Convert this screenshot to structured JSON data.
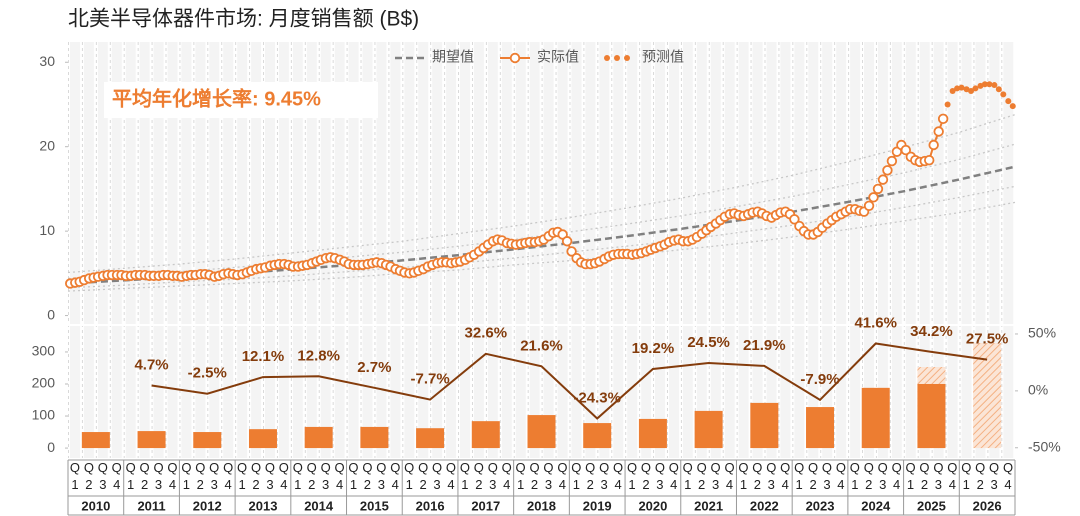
{
  "chart_data": [
    {
      "type": "line",
      "title": "北美半导体器件市场: 月度销售额 (B$)",
      "annotation": "平均年化增长率:  9.45%",
      "xlim": [
        2010,
        2027
      ],
      "ylim": [
        -1,
        32.4
      ],
      "yticks": [
        0,
        10,
        20,
        30
      ],
      "legend": "top",
      "series": [
        {
          "color": "#c8c8c8",
          "style": "dotted",
          "x": [
            2010,
            2011,
            2012,
            2013,
            2014,
            2015,
            2016,
            2017,
            2018,
            2019,
            2020,
            2021,
            2022,
            2023,
            2024,
            2025,
            2026,
            2027
          ],
          "values": [
            5.1,
            5.6,
            6.1,
            6.7,
            7.4,
            8.1,
            8.8,
            9.7,
            10.6,
            11.6,
            12.7,
            13.9,
            15.2,
            16.6,
            18.2,
            19.9,
            21.7,
            23.8
          ]
        },
        {
          "color": "#c8c8c8",
          "style": "dotted",
          "x": [
            2010,
            2011,
            2012,
            2013,
            2014,
            2015,
            2016,
            2017,
            2018,
            2019,
            2020,
            2021,
            2022,
            2023,
            2024,
            2025,
            2026,
            2027
          ],
          "values": [
            4.4,
            4.8,
            5.2,
            5.7,
            6.3,
            6.9,
            7.5,
            8.2,
            9.0,
            9.9,
            10.8,
            11.8,
            12.9,
            14.1,
            15.5,
            16.9,
            18.5,
            20.3
          ]
        },
        {
          "color": "#c8c8c8",
          "style": "dotted",
          "x": [
            2010,
            2011,
            2012,
            2013,
            2014,
            2015,
            2016,
            2017,
            2018,
            2019,
            2020,
            2021,
            2022,
            2023,
            2024,
            2025,
            2026,
            2027
          ],
          "values": [
            3.3,
            3.6,
            4.0,
            4.3,
            4.7,
            5.2,
            5.7,
            6.2,
            6.8,
            7.5,
            8.2,
            8.9,
            9.8,
            10.7,
            11.7,
            12.8,
            14.0,
            15.3
          ]
        },
        {
          "color": "#c8c8c8",
          "style": "dotted",
          "x": [
            2010,
            2011,
            2012,
            2013,
            2014,
            2015,
            2016,
            2017,
            2018,
            2019,
            2020,
            2021,
            2022,
            2023,
            2024,
            2025,
            2026,
            2027
          ],
          "values": [
            2.9,
            3.2,
            3.5,
            3.8,
            4.1,
            4.5,
            5.0,
            5.4,
            6.0,
            6.5,
            7.1,
            7.8,
            8.5,
            9.3,
            10.2,
            11.2,
            12.2,
            13.4
          ]
        },
        {
          "name": "期望值",
          "color": "#808080",
          "style": "dashed",
          "x": [
            2010,
            2011,
            2012,
            2013,
            2014,
            2015,
            2016,
            2017,
            2018,
            2019,
            2020,
            2021,
            2022,
            2023,
            2024,
            2025,
            2026,
            2027
          ],
          "values": [
            3.8,
            4.16,
            4.55,
            4.98,
            5.45,
            5.97,
            6.53,
            7.15,
            7.83,
            8.57,
            9.38,
            10.26,
            11.23,
            12.29,
            13.45,
            14.72,
            16.11,
            17.63
          ]
        },
        {
          "name": "实际值",
          "color": "#ed7d31",
          "style": "line-markers",
          "x": [
            2010.04,
            2010.13,
            2010.21,
            2010.29,
            2010.38,
            2010.46,
            2010.54,
            2010.63,
            2010.71,
            2010.79,
            2010.88,
            2010.96,
            2011.04,
            2011.13,
            2011.21,
            2011.29,
            2011.38,
            2011.46,
            2011.54,
            2011.63,
            2011.71,
            2011.79,
            2011.88,
            2011.96,
            2012.04,
            2012.13,
            2012.21,
            2012.29,
            2012.38,
            2012.46,
            2012.54,
            2012.63,
            2012.71,
            2012.79,
            2012.88,
            2012.96,
            2013.04,
            2013.13,
            2013.21,
            2013.29,
            2013.38,
            2013.46,
            2013.54,
            2013.63,
            2013.71,
            2013.79,
            2013.88,
            2013.96,
            2014.04,
            2014.13,
            2014.21,
            2014.29,
            2014.38,
            2014.46,
            2014.54,
            2014.63,
            2014.71,
            2014.79,
            2014.88,
            2014.96,
            2015.04,
            2015.13,
            2015.21,
            2015.29,
            2015.38,
            2015.46,
            2015.54,
            2015.63,
            2015.71,
            2015.79,
            2015.88,
            2015.96,
            2016.04,
            2016.13,
            2016.21,
            2016.29,
            2016.38,
            2016.46,
            2016.54,
            2016.63,
            2016.71,
            2016.79,
            2016.88,
            2016.96,
            2017.04,
            2017.13,
            2017.21,
            2017.29,
            2017.38,
            2017.46,
            2017.54,
            2017.63,
            2017.71,
            2017.79,
            2017.88,
            2017.96,
            2018.04,
            2018.13,
            2018.21,
            2018.29,
            2018.38,
            2018.46,
            2018.54,
            2018.63,
            2018.71,
            2018.79,
            2018.88,
            2018.96,
            2019.04,
            2019.13,
            2019.21,
            2019.29,
            2019.38,
            2019.46,
            2019.54,
            2019.63,
            2019.71,
            2019.79,
            2019.88,
            2019.96,
            2020.04,
            2020.13,
            2020.21,
            2020.29,
            2020.38,
            2020.46,
            2020.54,
            2020.63,
            2020.71,
            2020.79,
            2020.88,
            2020.96,
            2021.04,
            2021.13,
            2021.21,
            2021.29,
            2021.38,
            2021.46,
            2021.54,
            2021.63,
            2021.71,
            2021.79,
            2021.88,
            2021.96,
            2022.04,
            2022.13,
            2022.21,
            2022.29,
            2022.38,
            2022.46,
            2022.54,
            2022.63,
            2022.71,
            2022.79,
            2022.88,
            2022.96,
            2023.04,
            2023.13,
            2023.21,
            2023.29,
            2023.38,
            2023.46,
            2023.54,
            2023.63,
            2023.71,
            2023.79,
            2023.88,
            2023.96,
            2024.04,
            2024.13,
            2024.21,
            2024.29,
            2024.38,
            2024.46,
            2024.54,
            2024.63,
            2024.71,
            2024.79,
            2024.88,
            2024.96,
            2025.04,
            2025.13,
            2025.21,
            2025.29,
            2025.38,
            2025.46,
            2025.54,
            2025.63,
            2025.71
          ],
          "values": [
            3.8,
            3.9,
            4.0,
            4.2,
            4.4,
            4.5,
            4.6,
            4.7,
            4.8,
            4.8,
            4.8,
            4.8,
            4.7,
            4.7,
            4.8,
            4.8,
            4.8,
            4.7,
            4.7,
            4.7,
            4.8,
            4.8,
            4.7,
            4.7,
            4.6,
            4.7,
            4.8,
            4.8,
            4.9,
            4.9,
            4.8,
            4.6,
            4.7,
            4.9,
            5.0,
            4.9,
            4.8,
            4.9,
            5.1,
            5.3,
            5.5,
            5.6,
            5.7,
            5.9,
            6.0,
            6.1,
            6.1,
            6.0,
            5.8,
            5.8,
            5.9,
            6.0,
            6.2,
            6.4,
            6.6,
            6.8,
            6.9,
            6.8,
            6.6,
            6.4,
            6.1,
            6.0,
            6.0,
            6.0,
            6.1,
            6.2,
            6.3,
            6.2,
            6.0,
            5.8,
            5.5,
            5.3,
            5.1,
            5.0,
            5.1,
            5.3,
            5.5,
            5.8,
            6.0,
            6.2,
            6.3,
            6.3,
            6.2,
            6.3,
            6.4,
            6.6,
            6.9,
            7.2,
            7.6,
            8.0,
            8.4,
            8.8,
            9.0,
            8.9,
            8.6,
            8.5,
            8.4,
            8.5,
            8.6,
            8.7,
            8.7,
            8.8,
            9.0,
            9.4,
            9.8,
            9.9,
            9.6,
            8.8,
            7.6,
            6.8,
            6.3,
            6.1,
            6.1,
            6.2,
            6.4,
            6.7,
            7.0,
            7.2,
            7.3,
            7.3,
            7.3,
            7.2,
            7.3,
            7.4,
            7.6,
            7.8,
            8.0,
            8.2,
            8.4,
            8.7,
            8.9,
            9.0,
            8.8,
            8.8,
            9.0,
            9.3,
            9.7,
            10.1,
            10.5,
            10.9,
            11.3,
            11.7,
            12.0,
            12.1,
            11.9,
            11.8,
            12.0,
            12.2,
            12.3,
            12.1,
            11.8,
            11.6,
            11.9,
            12.2,
            12.3,
            12.0,
            11.4,
            10.6,
            10.0,
            9.6,
            9.6,
            9.9,
            10.4,
            10.9,
            11.3,
            11.7,
            12.0,
            12.3,
            12.6,
            12.6,
            12.4,
            12.3,
            13.0,
            14.0,
            15.0,
            16.1,
            17.2,
            18.3,
            19.4,
            20.2,
            19.6,
            18.8,
            18.4,
            18.2,
            18.3,
            18.4,
            20.2,
            21.8,
            23.3
          ]
        },
        {
          "name": "预测值",
          "color": "#ed7d31",
          "style": "dots",
          "x": [
            2025.79,
            2025.88,
            2025.96,
            2026.04,
            2026.13,
            2026.21,
            2026.29,
            2026.38,
            2026.46,
            2026.54,
            2026.63,
            2026.71,
            2026.79,
            2026.88,
            2026.96
          ],
          "values": [
            25.0,
            26.6,
            26.9,
            27.0,
            26.8,
            26.6,
            26.9,
            27.2,
            27.4,
            27.4,
            27.3,
            26.8,
            26.2,
            25.4,
            24.8
          ]
        }
      ]
    },
    {
      "type": "bar",
      "categories": [
        "2010",
        "2011",
        "2012",
        "2013",
        "2014",
        "2015",
        "2016",
        "2017",
        "2018",
        "2019",
        "2020",
        "2021",
        "2022",
        "2023",
        "2024",
        "2025",
        "2026"
      ],
      "quarter_labels": [
        "Q1",
        "Q2",
        "Q3",
        "Q4"
      ],
      "ylim": [
        -31,
        381
      ],
      "yticks": [
        0,
        100,
        200,
        300
      ],
      "y2lim": [
        -59,
        57
      ],
      "y2ticks": [
        {
          "value": 50,
          "label": "50%"
        },
        {
          "value": 0,
          "label": "0%"
        },
        {
          "value": -50,
          "label": "-50%"
        }
      ],
      "series": [
        {
          "color": "#f8cbad",
          "hatch": true,
          "values": [
            null,
            null,
            null,
            null,
            null,
            null,
            null,
            null,
            null,
            null,
            null,
            null,
            null,
            null,
            null,
            253,
            328
          ]
        },
        {
          "color": "#ed7d31",
          "values": [
            50,
            53,
            50,
            59,
            66,
            66,
            62,
            84,
            103,
            78,
            91,
            116,
            141,
            128,
            188,
            200,
            null
          ]
        },
        {
          "color": "#843c0c",
          "axis": "y2",
          "values": [
            null,
            4.7,
            -2.5,
            12.1,
            12.8,
            2.7,
            -7.7,
            32.6,
            21.6,
            -24.3,
            19.2,
            24.5,
            21.9,
            -7.9,
            41.6,
            34.2,
            27.5
          ],
          "value_labels": [
            null,
            "4.7%",
            "-2.5%",
            "12.1%",
            "12.8%",
            "2.7%",
            "-7.7%",
            "32.6%",
            "21.6%",
            "-24.3%",
            "19.2%",
            "24.5%",
            "21.9%",
            "-7.9%",
            "41.6%",
            "34.2%",
            "27.5%"
          ]
        }
      ]
    }
  ]
}
